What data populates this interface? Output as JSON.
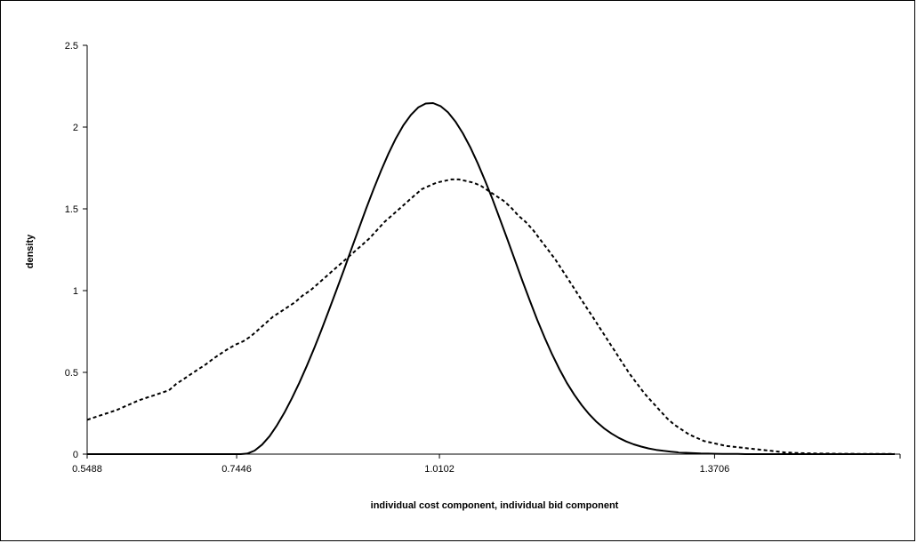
{
  "chart_data": {
    "type": "line",
    "title": "",
    "xlabel": "individual cost component, individual bid component",
    "ylabel": "density",
    "xlim": [
      0.5488,
      1.6066
    ],
    "ylim": [
      0,
      2.5
    ],
    "x_ticks": [
      "0.5488",
      "0.7446",
      "1.0102",
      "1.3706"
    ],
    "x_tick_values": [
      0.5488,
      0.7446,
      1.0102,
      1.3706
    ],
    "y_ticks": [
      "0",
      "0.5",
      "1",
      "1.5",
      "2",
      "2.5"
    ],
    "y_tick_values": [
      0,
      0.5,
      1,
      1.5,
      2,
      2.5
    ],
    "grid": false,
    "legend": "none",
    "colors": {
      "line": "#000000",
      "background": "#ffffff"
    },
    "series": [
      {
        "style": "solid",
        "x": [
          0.5488,
          0.6,
          0.65,
          0.7,
          0.75,
          0.7585,
          0.7682,
          0.778,
          0.7877,
          0.7975,
          0.8072,
          0.8169,
          0.8267,
          0.8364,
          0.8462,
          0.8559,
          0.8656,
          0.8754,
          0.8851,
          0.8948,
          0.9046,
          0.9143,
          0.924,
          0.9338,
          0.9435,
          0.9532,
          0.963,
          0.9727,
          0.9824,
          0.9922,
          1.0019,
          1.0116,
          1.0214,
          1.0311,
          1.0409,
          1.0506,
          1.0603,
          1.07,
          1.0798,
          1.0895,
          1.0993,
          1.109,
          1.1187,
          1.1285,
          1.1382,
          1.148,
          1.1577,
          1.1674,
          1.1771,
          1.1869,
          1.1966,
          1.2063,
          1.2161,
          1.2258,
          1.2355,
          1.2453,
          1.255,
          1.2647,
          1.2745,
          1.2842,
          1.294,
          1.3037,
          1.3134,
          1.3231,
          1.3329,
          1.3426,
          1.3524,
          1.3621,
          1.3718,
          1.3816,
          1.3913,
          1.401,
          1.4108,
          1.4205,
          1.4302,
          1.44,
          1.4497,
          1.4594,
          1.4692,
          1.4789,
          1.4886,
          1.4984,
          1.5081,
          1.5178,
          1.5276,
          1.5373,
          1.547,
          1.5568,
          1.5665,
          1.5762,
          1.586,
          1.5957,
          1.6066
        ],
        "y": [
          0,
          0,
          0,
          0,
          0,
          0.003,
          0.022,
          0.058,
          0.11,
          0.177,
          0.254,
          0.341,
          0.436,
          0.539,
          0.648,
          0.762,
          0.881,
          1.003,
          1.127,
          1.253,
          1.378,
          1.502,
          1.621,
          1.734,
          1.838,
          1.931,
          2.011,
          2.074,
          2.12,
          2.144,
          2.147,
          2.128,
          2.09,
          2.034,
          1.962,
          1.877,
          1.779,
          1.672,
          1.558,
          1.437,
          1.313,
          1.187,
          1.062,
          0.94,
          0.823,
          0.713,
          0.611,
          0.519,
          0.436,
          0.363,
          0.299,
          0.244,
          0.197,
          0.158,
          0.126,
          0.099,
          0.077,
          0.06,
          0.046,
          0.035,
          0.026,
          0.02,
          0.015,
          0.011,
          0.008,
          0.006,
          0.004,
          0.003,
          0.002,
          0.001,
          0.001,
          0.001,
          0,
          0,
          0,
          0,
          0,
          0,
          0,
          0,
          0,
          0,
          0,
          0,
          0,
          0,
          0,
          0,
          0,
          0,
          0,
          0,
          0
        ]
      },
      {
        "style": "dashed",
        "x": [
          0.5488,
          0.5585,
          0.5683,
          0.578,
          0.5877,
          0.5975,
          0.6072,
          0.617,
          0.6267,
          0.6364,
          0.6462,
          0.6559,
          0.6656,
          0.6754,
          0.6851,
          0.6948,
          0.7046,
          0.7143,
          0.724,
          0.7338,
          0.7435,
          0.7532,
          0.763,
          0.7727,
          0.7824,
          0.7922,
          0.8019,
          0.8116,
          0.8214,
          0.8311,
          0.8409,
          0.8506,
          0.8603,
          0.87,
          0.8798,
          0.8895,
          0.8993,
          0.909,
          0.9187,
          0.9285,
          0.9382,
          0.948,
          0.9577,
          0.9674,
          0.9771,
          0.9869,
          0.9966,
          1.0063,
          1.0161,
          1.0258,
          1.0355,
          1.0453,
          1.055,
          1.0647,
          1.0745,
          1.0842,
          1.094,
          1.1037,
          1.1134,
          1.1231,
          1.1329,
          1.1426,
          1.1524,
          1.1621,
          1.1718,
          1.1816,
          1.1913,
          1.201,
          1.2108,
          1.2205,
          1.2302,
          1.24,
          1.2497,
          1.2594,
          1.2692,
          1.2789,
          1.2886,
          1.2984,
          1.3081,
          1.3178,
          1.3276,
          1.3373,
          1.347,
          1.3568,
          1.3665,
          1.3762,
          1.386,
          1.3957,
          1.4054,
          1.4152,
          1.4249,
          1.4346,
          1.4444,
          1.4541,
          1.4638,
          1.4736,
          1.4833,
          1.493,
          1.5028,
          1.5125,
          1.5222,
          1.532,
          1.5417,
          1.5514,
          1.5612,
          1.5709,
          1.5806,
          1.5904,
          1.6001,
          1.6066
        ],
        "y": [
          0.21,
          0.225,
          0.24,
          0.255,
          0.27,
          0.29,
          0.31,
          0.33,
          0.345,
          0.36,
          0.375,
          0.39,
          0.43,
          0.46,
          0.49,
          0.52,
          0.55,
          0.585,
          0.615,
          0.645,
          0.67,
          0.69,
          0.72,
          0.76,
          0.8,
          0.84,
          0.87,
          0.9,
          0.93,
          0.97,
          1.0,
          1.04,
          1.08,
          1.12,
          1.16,
          1.2,
          1.24,
          1.28,
          1.32,
          1.37,
          1.42,
          1.46,
          1.5,
          1.54,
          1.58,
          1.62,
          1.64,
          1.66,
          1.67,
          1.68,
          1.68,
          1.67,
          1.66,
          1.64,
          1.61,
          1.58,
          1.55,
          1.51,
          1.46,
          1.42,
          1.37,
          1.31,
          1.25,
          1.19,
          1.12,
          1.05,
          0.98,
          0.91,
          0.84,
          0.77,
          0.7,
          0.63,
          0.56,
          0.49,
          0.43,
          0.37,
          0.32,
          0.27,
          0.22,
          0.18,
          0.15,
          0.12,
          0.1,
          0.08,
          0.07,
          0.06,
          0.05,
          0.045,
          0.04,
          0.035,
          0.03,
          0.025,
          0.02,
          0.015,
          0.01,
          0.008,
          0.006,
          0.005,
          0.004,
          0.003,
          0.003,
          0.002,
          0.002,
          0.002,
          0.001,
          0.001,
          0.001,
          0.001,
          0.001,
          0.001
        ]
      }
    ]
  }
}
